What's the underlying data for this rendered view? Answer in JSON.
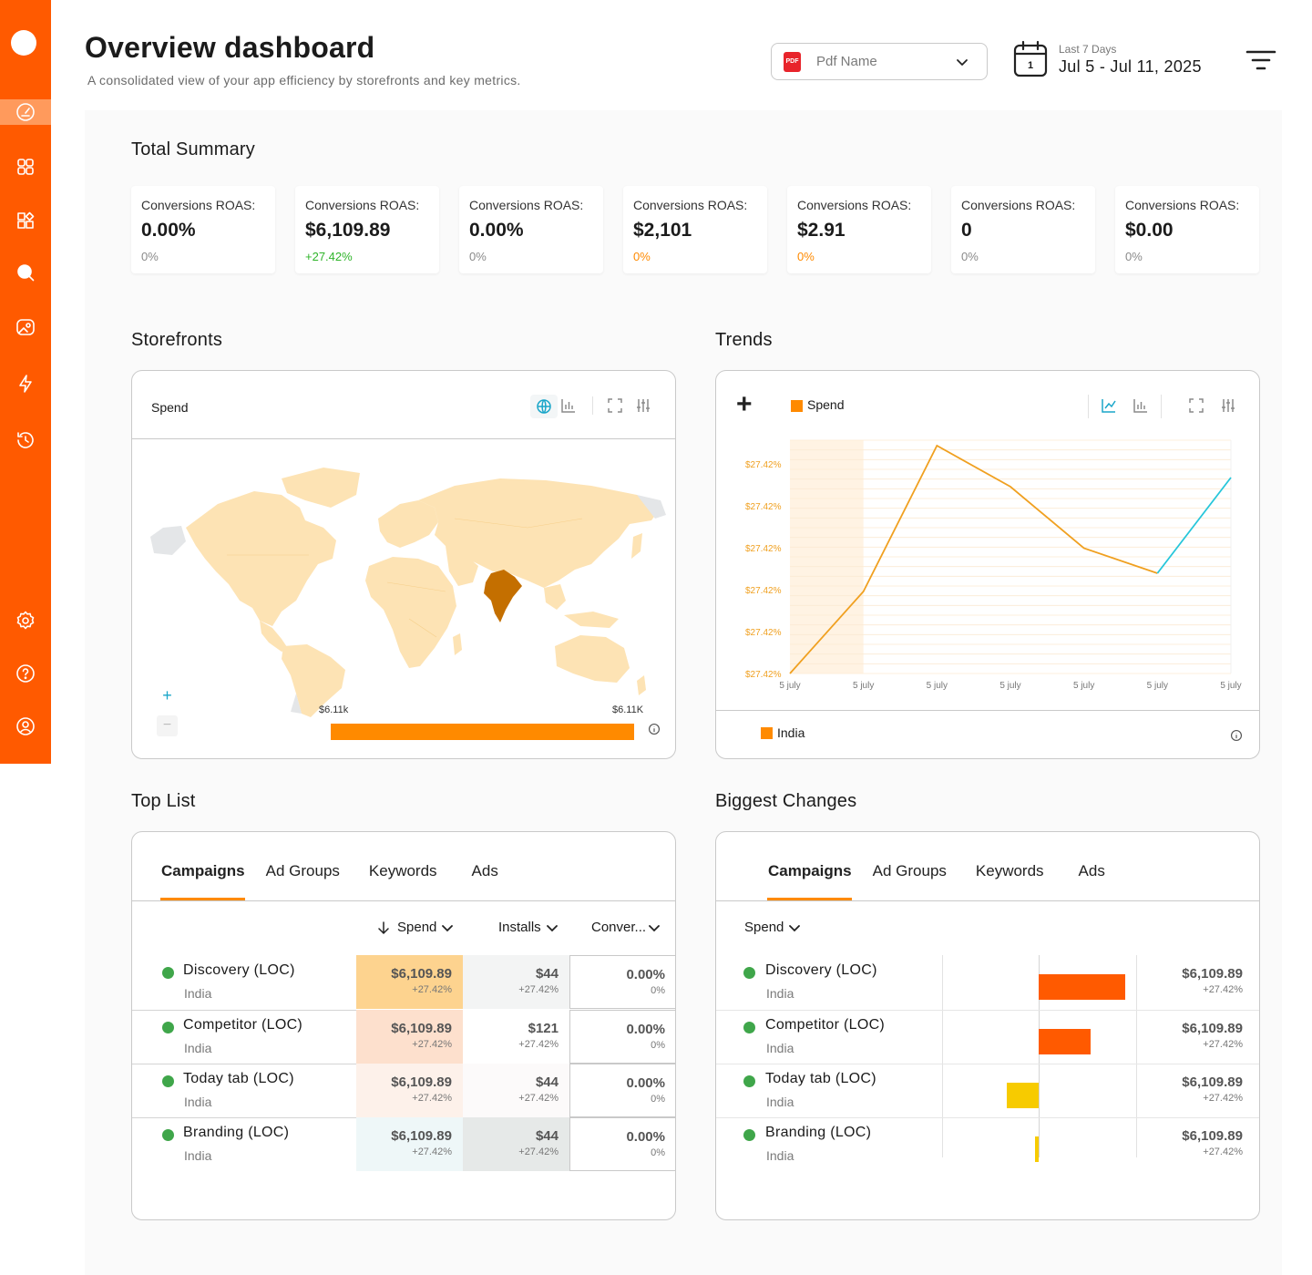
{
  "header": {
    "title": "Overview dashboard",
    "subtitle": "A consolidated view of your app efficiency by storefronts and key metrics.",
    "pdf_select": {
      "icon_text": "PDF",
      "value": "Pdf Name"
    },
    "date": {
      "label": "Last 7 Days",
      "value": "Jul 5 - Jul 11, 2025",
      "day": "1"
    }
  },
  "sidebar": {
    "icons": [
      "dashboard-icon",
      "apps-grid-icon",
      "widgets-icon",
      "search-icon",
      "image-icon",
      "bolt-icon",
      "history-icon",
      "settings-icon",
      "help-icon",
      "user-icon"
    ],
    "active": "dashboard-icon"
  },
  "summary": {
    "title": "Total Summary",
    "cards": [
      {
        "label": "Conversions ROAS:",
        "value": "0.00%",
        "change": "0%",
        "tone": "neutral"
      },
      {
        "label": "Conversions ROAS:",
        "value": "$6,109.89",
        "change": "+27.42%",
        "tone": "pos"
      },
      {
        "label": "Conversions ROAS:",
        "value": "0.00%",
        "change": "0%",
        "tone": "neutral"
      },
      {
        "label": "Conversions ROAS:",
        "value": "$2,101",
        "change": "0%",
        "tone": "warn"
      },
      {
        "label": "Conversions ROAS:",
        "value": "$2.91",
        "change": "0%",
        "tone": "warn"
      },
      {
        "label": "Conversions ROAS:",
        "value": "0",
        "change": "0%",
        "tone": "neutral"
      },
      {
        "label": "Conversions ROAS:",
        "value": "$0.00",
        "change": "0%",
        "tone": "neutral"
      }
    ]
  },
  "storefronts": {
    "title": "Storefronts",
    "metric": "Spend",
    "zoom_in": "+",
    "zoom_out": "−",
    "scale_min": "$6.11k",
    "scale_max": "$6.11K",
    "highlighted_country": "India",
    "colors": {
      "base": "#fde3b4",
      "highlight": "#c46f00",
      "bar": "#ff8a00"
    }
  },
  "trends": {
    "title": "Trends",
    "add_label": "+",
    "legend_series": "Spend",
    "legend_country": "India",
    "chart_data": {
      "type": "line",
      "x": [
        "5 july",
        "5 july",
        "5 july",
        "5 july",
        "5 july",
        "5 july",
        "5 july"
      ],
      "y_tick_labels": [
        "$27.42%",
        "$27.42%",
        "$27.42%",
        "$27.42%",
        "$27.42%",
        "$27.42%"
      ],
      "series": [
        {
          "name": "Spend",
          "values": [
            0,
            0.36,
            1.0,
            0.82,
            0.55,
            0.44,
            0.86
          ],
          "color": "#f0a020",
          "highlight_last_segment": "#26c6da"
        }
      ],
      "grid": true
    }
  },
  "toplist": {
    "title": "Top List",
    "tabs": [
      "Campaigns",
      "Ad Groups",
      "Keywords",
      "Ads"
    ],
    "active_tab": "Campaigns",
    "columns": [
      "Spend",
      "Installs",
      "Conver..."
    ],
    "rows": [
      {
        "name": "Discovery  (LOC)",
        "country": "India",
        "spend": "$6,109.89",
        "spend_change": "+27.42%",
        "installs": "$44",
        "installs_change": "+27.42%",
        "conv": "0.00%",
        "conv_change": "0%",
        "spend_bg": "#fdd38f",
        "installs_bg": "#f3f4f4"
      },
      {
        "name": "Competitor (LOC)",
        "country": "India",
        "spend": "$6,109.89",
        "spend_change": "+27.42%",
        "installs": "$121",
        "installs_change": "+27.42%",
        "conv": "0.00%",
        "conv_change": "0%",
        "spend_bg": "#fde0cd",
        "installs_bg": "#ffffff"
      },
      {
        "name": "Today tab  (LOC)",
        "country": "India",
        "spend": "$6,109.89",
        "spend_change": "+27.42%",
        "installs": "$44",
        "installs_change": "+27.42%",
        "conv": "0.00%",
        "conv_change": "0%",
        "spend_bg": "#fdf1ea",
        "installs_bg": "#fcfafa"
      },
      {
        "name": "Branding  (LOC)",
        "country": "India",
        "spend": "$6,109.89",
        "spend_change": "+27.42%",
        "installs": "$44",
        "installs_change": "+27.42%",
        "conv": "0.00%",
        "conv_change": "0%",
        "spend_bg": "#eef7f8",
        "installs_bg": "#e6e9e8"
      }
    ]
  },
  "changes": {
    "title": "Biggest Changes",
    "tabs": [
      "Campaigns",
      "Ad Groups",
      "Keywords",
      "Ads"
    ],
    "active_tab": "Campaigns",
    "sort_label": "Spend",
    "rows": [
      {
        "name": "Discovery  (LOC)",
        "country": "India",
        "value": "$6,109.89",
        "change": "+27.42%",
        "bar": 0.95,
        "color": "#ff5a00"
      },
      {
        "name": "Competitor (LOC)",
        "country": "India",
        "value": "$6,109.89",
        "change": "+27.42%",
        "bar": 0.57,
        "color": "#ff5a00"
      },
      {
        "name": "Today tab  (LOC)",
        "country": "India",
        "value": "$6,109.89",
        "change": "+27.42%",
        "bar": -0.35,
        "color": "#f7cb00"
      },
      {
        "name": "Branding  (LOC)",
        "country": "India",
        "value": "$6,109.89",
        "change": "+27.42%",
        "bar": -0.04,
        "color": "#f7cb00"
      }
    ]
  }
}
